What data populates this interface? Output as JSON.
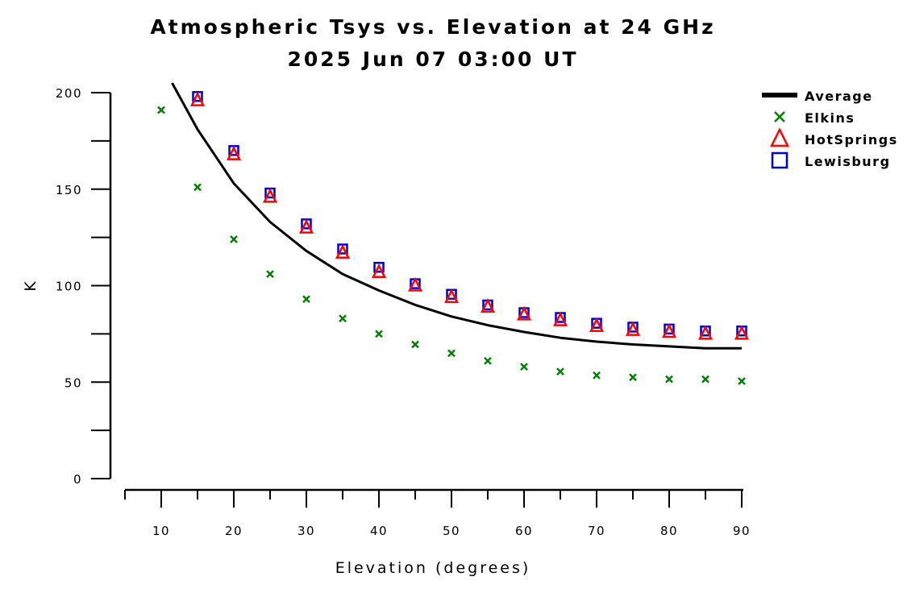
{
  "chart_data": {
    "type": "scatter",
    "title": "Atmospheric Tsys vs. Elevation at 24 GHz",
    "subtitle": "2025 Jun 07 03:00 UT",
    "xlabel": "Elevation (degrees)",
    "ylabel": "K",
    "xlim": [
      5,
      90
    ],
    "ylim": [
      0,
      200
    ],
    "x_ticks": [
      10,
      20,
      30,
      40,
      50,
      60,
      70,
      80,
      90
    ],
    "y_ticks": [
      0,
      50,
      100,
      150,
      200
    ],
    "grid": false,
    "legend_position": "top-right",
    "series": [
      {
        "name": "Average",
        "style": "line",
        "color": "#000000",
        "x": [
          11.5,
          15,
          20,
          25,
          30,
          35,
          40,
          45,
          50,
          55,
          60,
          65,
          70,
          75,
          80,
          85,
          90
        ],
        "y": [
          205,
          181,
          153,
          133,
          118,
          106,
          97.5,
          90,
          84,
          79.5,
          76,
          73,
          71,
          69.5,
          68.5,
          67.5,
          67.5
        ]
      },
      {
        "name": "Elkins",
        "style": "x-marker",
        "color": "#008000",
        "x": [
          10,
          15,
          20,
          25,
          30,
          35,
          40,
          45,
          50,
          55,
          60,
          65,
          70,
          75,
          80,
          85,
          90
        ],
        "y": [
          191,
          151,
          124,
          106,
          93,
          83,
          75,
          69.5,
          65,
          61,
          58,
          55.5,
          53.5,
          52.5,
          51.5,
          51.5,
          50.5
        ]
      },
      {
        "name": "HotSprings",
        "style": "triangle-marker",
        "color": "#ff0000",
        "x": [
          15,
          20,
          25,
          30,
          35,
          40,
          45,
          50,
          55,
          60,
          65,
          70,
          75,
          80,
          85,
          90
        ],
        "y": [
          196,
          168,
          146,
          130,
          117,
          107,
          100,
          94,
          89,
          85,
          82,
          79,
          77,
          76,
          75,
          75
        ]
      },
      {
        "name": "Lewisburg",
        "style": "square-marker",
        "color": "#0000cc",
        "x": [
          15,
          20,
          25,
          30,
          35,
          40,
          45,
          50,
          55,
          60,
          65,
          70,
          75,
          80,
          85,
          90
        ],
        "y": [
          198,
          170,
          148,
          132,
          119,
          109.5,
          101,
          95.5,
          90,
          86,
          83.5,
          80.5,
          78.5,
          77.5,
          76.5,
          76.5
        ]
      }
    ]
  }
}
